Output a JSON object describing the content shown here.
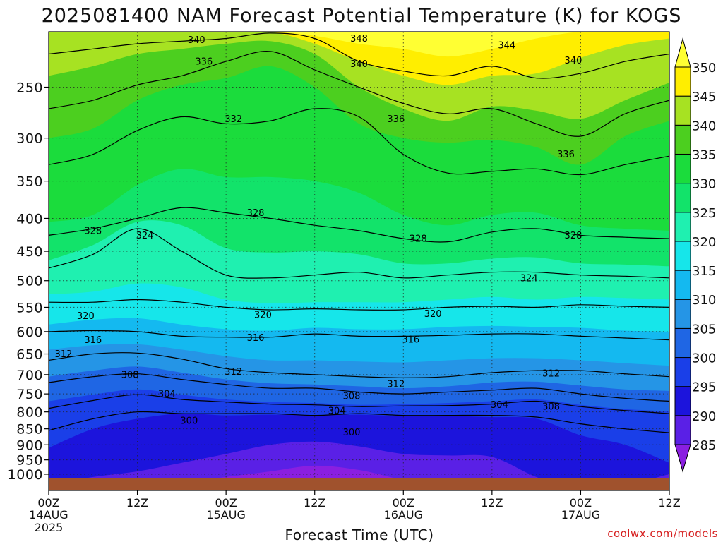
{
  "chart_data": {
    "type": "heatmap",
    "title": "2025081400 NAM Forecast Potential Temperature (K) for KOGS",
    "xlabel": "Forecast Time (UTC)",
    "ylabel": "",
    "credit": "coolwx.com/models",
    "y_scale": "log",
    "ylim": [
      1060,
      205
    ],
    "y_ticks": [
      250,
      300,
      350,
      400,
      450,
      500,
      550,
      600,
      650,
      700,
      750,
      800,
      850,
      900,
      950,
      1000
    ],
    "x_ticks": [
      {
        "hour": 0,
        "label": "00Z",
        "date": "14AUG",
        "year": "2025"
      },
      {
        "hour": 12,
        "label": "12Z",
        "date": "",
        "year": ""
      },
      {
        "hour": 24,
        "label": "00Z",
        "date": "15AUG",
        "year": ""
      },
      {
        "hour": 36,
        "label": "12Z",
        "date": "",
        "year": ""
      },
      {
        "hour": 48,
        "label": "00Z",
        "date": "16AUG",
        "year": ""
      },
      {
        "hour": 60,
        "label": "12Z",
        "date": "",
        "year": ""
      },
      {
        "hour": 72,
        "label": "00Z",
        "date": "17AUG",
        "year": ""
      },
      {
        "hour": 84,
        "label": "12Z",
        "date": "",
        "year": ""
      }
    ],
    "xlim": [
      0,
      84
    ],
    "colorbar": {
      "levels": [
        285,
        290,
        295,
        300,
        305,
        310,
        315,
        320,
        325,
        330,
        335,
        340,
        345,
        350
      ],
      "colors": [
        "#8a1fe0",
        "#5a20e6",
        "#1c14dc",
        "#1a3fe8",
        "#1f66e4",
        "#2595e6",
        "#14b9f0",
        "#16e6ea",
        "#1ff0b0",
        "#12e36a",
        "#1bdc3c",
        "#4ccf1f",
        "#a7e222",
        "#ffee00",
        "#ffff33"
      ]
    },
    "ground_color": "#a0522d",
    "grid": true,
    "x_hours": [
      0,
      6,
      12,
      18,
      24,
      30,
      36,
      42,
      48,
      54,
      60,
      66,
      72,
      78,
      84
    ],
    "isentropes": [
      {
        "theta": 300,
        "p": [
          855,
          820,
          800,
          805,
          805,
          805,
          810,
          805,
          810,
          810,
          810,
          815,
          835,
          850,
          862
        ]
      },
      {
        "theta": 304,
        "p": [
          790,
          768,
          752,
          765,
          772,
          778,
          780,
          785,
          783,
          782,
          778,
          770,
          785,
          796,
          805
        ]
      },
      {
        "theta": 308,
        "p": [
          720,
          705,
          698,
          712,
          725,
          735,
          735,
          745,
          750,
          745,
          740,
          735,
          750,
          762,
          770
        ]
      },
      {
        "theta": 312,
        "p": [
          665,
          650,
          648,
          662,
          685,
          695,
          700,
          705,
          708,
          705,
          695,
          690,
          690,
          698,
          705
        ]
      },
      {
        "theta": 316,
        "p": [
          600,
          598,
          600,
          610,
          612,
          612,
          605,
          610,
          610,
          608,
          605,
          605,
          610,
          614,
          618
        ]
      },
      {
        "theta": 320,
        "p": [
          540,
          540,
          535,
          540,
          550,
          555,
          553,
          555,
          555,
          550,
          548,
          550,
          545,
          548,
          550
        ]
      },
      {
        "theta": 324,
        "p": [
          478,
          455,
          415,
          450,
          490,
          495,
          490,
          485,
          495,
          490,
          485,
          485,
          490,
          492,
          495
        ]
      },
      {
        "theta": 328,
        "p": [
          425,
          415,
          400,
          385,
          392,
          400,
          410,
          418,
          430,
          435,
          420,
          415,
          425,
          428,
          430
        ]
      },
      {
        "theta": 332,
        "p": [
          330,
          318,
          292,
          278,
          285,
          282,
          270,
          278,
          318,
          340,
          338,
          335,
          342,
          330,
          320
        ]
      },
      {
        "theta": 336,
        "p": [
          270,
          262,
          248,
          240,
          228,
          220,
          235,
          250,
          265,
          275,
          270,
          285,
          298,
          275,
          262
        ]
      },
      {
        "theta": 340,
        "p": [
          222,
          218,
          214,
          212,
          210,
          206,
          210,
          228,
          236,
          240,
          232,
          242,
          238,
          228,
          222
        ]
      }
    ],
    "isentrope_labels": [
      {
        "text": "340",
        "hour": 20,
        "p": 211
      },
      {
        "text": "348",
        "hour": 42,
        "p": 210
      },
      {
        "text": "344",
        "hour": 62,
        "p": 215
      },
      {
        "text": "340",
        "hour": 42,
        "p": 230
      },
      {
        "text": "340",
        "hour": 71,
        "p": 227
      },
      {
        "text": "336",
        "hour": 21,
        "p": 228
      },
      {
        "text": "336",
        "hour": 47,
        "p": 280
      },
      {
        "text": "336",
        "hour": 70,
        "p": 318
      },
      {
        "text": "332",
        "hour": 25,
        "p": 280
      },
      {
        "text": "328",
        "hour": 6,
        "p": 418
      },
      {
        "text": "324",
        "hour": 13,
        "p": 425
      },
      {
        "text": "328",
        "hour": 28,
        "p": 392
      },
      {
        "text": "328",
        "hour": 50,
        "p": 430
      },
      {
        "text": "328",
        "hour": 71,
        "p": 425
      },
      {
        "text": "324",
        "hour": 65,
        "p": 495
      },
      {
        "text": "320",
        "hour": 5,
        "p": 567
      },
      {
        "text": "320",
        "hour": 29,
        "p": 565
      },
      {
        "text": "320",
        "hour": 52,
        "p": 563
      },
      {
        "text": "316",
        "hour": 6,
        "p": 618
      },
      {
        "text": "316",
        "hour": 28,
        "p": 613
      },
      {
        "text": "316",
        "hour": 49,
        "p": 617
      },
      {
        "text": "312",
        "hour": 2,
        "p": 650
      },
      {
        "text": "312",
        "hour": 25,
        "p": 692
      },
      {
        "text": "312",
        "hour": 47,
        "p": 724
      },
      {
        "text": "312",
        "hour": 68,
        "p": 697
      },
      {
        "text": "308",
        "hour": 11,
        "p": 700
      },
      {
        "text": "308",
        "hour": 41,
        "p": 755
      },
      {
        "text": "308",
        "hour": 68,
        "p": 785
      },
      {
        "text": "304",
        "hour": 16,
        "p": 750
      },
      {
        "text": "304",
        "hour": 39,
        "p": 797
      },
      {
        "text": "304",
        "hour": 61,
        "p": 780
      },
      {
        "text": "300",
        "hour": 19,
        "p": 825
      },
      {
        "text": "300",
        "hour": 41,
        "p": 860
      }
    ],
    "fill_bands": [
      {
        "level": 350,
        "p": [
          205,
          205,
          205,
          205,
          205,
          205,
          208,
          214,
          218,
          224,
          218,
          210,
          205,
          205,
          205
        ]
      },
      {
        "level": 345,
        "p": [
          205,
          205,
          205,
          205,
          205,
          205,
          214,
          228,
          240,
          248,
          240,
          238,
          225,
          215,
          210
        ]
      },
      {
        "level": 340,
        "p": [
          240,
          232,
          222,
          218,
          214,
          212,
          222,
          250,
          270,
          282,
          268,
          272,
          280,
          262,
          246
        ]
      },
      {
        "level": 335,
        "p": [
          300,
          290,
          262,
          248,
          242,
          232,
          250,
          285,
          300,
          305,
          302,
          310,
          330,
          298,
          282
        ]
      },
      {
        "level": 330,
        "p": [
          405,
          395,
          355,
          335,
          345,
          345,
          350,
          365,
          395,
          410,
          395,
          392,
          410,
          415,
          418
        ]
      },
      {
        "level": 325,
        "p": [
          465,
          440,
          405,
          410,
          445,
          452,
          450,
          455,
          470,
          470,
          462,
          460,
          470,
          472,
          475
        ]
      },
      {
        "level": 320,
        "p": [
          525,
          520,
          505,
          512,
          535,
          542,
          540,
          540,
          540,
          535,
          530,
          535,
          530,
          532,
          535
        ]
      },
      {
        "level": 315,
        "p": [
          585,
          575,
          572,
          585,
          595,
          598,
          592,
          595,
          595,
          590,
          588,
          590,
          592,
          598,
          600
        ]
      },
      {
        "level": 310,
        "p": [
          640,
          630,
          628,
          640,
          655,
          665,
          665,
          668,
          670,
          665,
          660,
          660,
          665,
          672,
          678
        ]
      },
      {
        "level": 305,
        "p": [
          705,
          690,
          680,
          695,
          712,
          722,
          725,
          730,
          735,
          730,
          720,
          718,
          728,
          738,
          742
        ]
      },
      {
        "level": 300,
        "p": [
          770,
          752,
          738,
          752,
          765,
          772,
          775,
          780,
          778,
          775,
          770,
          765,
          780,
          792,
          798
        ]
      },
      {
        "level": 295,
        "p": [
          910,
          850,
          820,
          805,
          810,
          808,
          810,
          808,
          812,
          812,
          815,
          820,
          870,
          900,
          960
        ]
      },
      {
        "level": 290,
        "p": [
          1040,
          1010,
          990,
          960,
          930,
          900,
          890,
          905,
          930,
          935,
          940,
          1010,
          1060,
          1040,
          1000
        ]
      },
      {
        "level": 285,
        "p": [
          1060,
          1060,
          1045,
          1030,
          1010,
          990,
          970,
          985,
          1020,
          1040,
          1050,
          1060,
          1060,
          1060,
          1060
        ]
      }
    ]
  }
}
